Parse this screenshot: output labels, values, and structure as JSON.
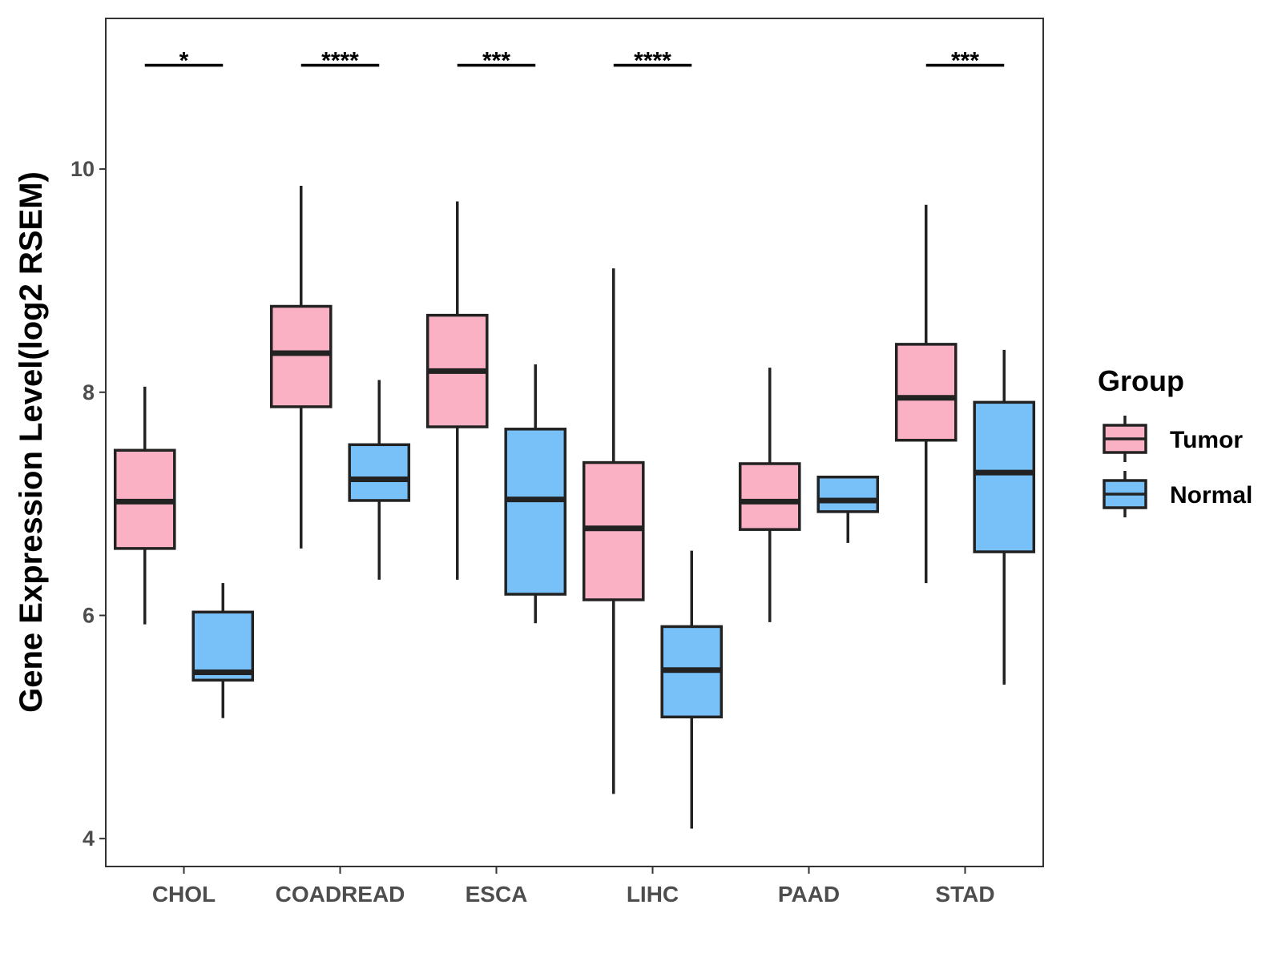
{
  "chart_data": {
    "type": "boxplot",
    "ylabel": "Gene Expression Level(log2 RSEM)",
    "xlabel": "",
    "ylim": [
      3.75,
      11.35
    ],
    "yticks": [
      4,
      6,
      8,
      10
    ],
    "grid": false,
    "categories": [
      "CHOL",
      "COADREAD",
      "ESCA",
      "LIHC",
      "PAAD",
      "STAD"
    ],
    "legend": {
      "title": "Group",
      "position": "right",
      "entries": [
        {
          "name": "Tumor",
          "color": "#FBB1C4"
        },
        {
          "name": "Normal",
          "color": "#78C1F8"
        }
      ]
    },
    "series": [
      {
        "name": "Tumor",
        "color": "#FBB1C4",
        "boxes": [
          {
            "category": "CHOL",
            "min": 5.92,
            "q1": 6.6,
            "median": 7.02,
            "q3": 7.48,
            "max": 8.05
          },
          {
            "category": "COADREAD",
            "min": 6.6,
            "q1": 7.87,
            "median": 8.35,
            "q3": 8.77,
            "max": 9.85
          },
          {
            "category": "ESCA",
            "min": 6.32,
            "q1": 7.69,
            "median": 8.19,
            "q3": 8.69,
            "max": 9.71
          },
          {
            "category": "LIHC",
            "min": 4.4,
            "q1": 6.14,
            "median": 6.78,
            "q3": 7.37,
            "max": 9.11
          },
          {
            "category": "PAAD",
            "min": 5.94,
            "q1": 6.77,
            "median": 7.02,
            "q3": 7.36,
            "max": 8.22
          },
          {
            "category": "STAD",
            "min": 6.29,
            "q1": 7.57,
            "median": 7.95,
            "q3": 8.43,
            "max": 9.68
          }
        ]
      },
      {
        "name": "Normal",
        "color": "#78C1F8",
        "boxes": [
          {
            "category": "CHOL",
            "min": 5.08,
            "q1": 5.42,
            "median": 5.49,
            "q3": 6.03,
            "max": 6.29
          },
          {
            "category": "COADREAD",
            "min": 6.32,
            "q1": 7.03,
            "median": 7.22,
            "q3": 7.53,
            "max": 8.11
          },
          {
            "category": "ESCA",
            "min": 5.93,
            "q1": 6.19,
            "median": 7.04,
            "q3": 7.67,
            "max": 8.25
          },
          {
            "category": "LIHC",
            "min": 4.09,
            "q1": 5.09,
            "median": 5.51,
            "q3": 5.9,
            "max": 6.58
          },
          {
            "category": "PAAD",
            "min": 6.65,
            "q1": 6.93,
            "median": 7.03,
            "q3": 7.24,
            "max": 7.24
          },
          {
            "category": "STAD",
            "min": 5.38,
            "q1": 6.57,
            "median": 7.28,
            "q3": 7.91,
            "max": 8.38
          }
        ]
      }
    ],
    "significance": [
      {
        "category": "CHOL",
        "label": "*",
        "y": 10.93
      },
      {
        "category": "COADREAD",
        "label": "****",
        "y": 10.93
      },
      {
        "category": "ESCA",
        "label": "***",
        "y": 10.93
      },
      {
        "category": "LIHC",
        "label": "****",
        "y": 10.93
      },
      {
        "category": "STAD",
        "label": "***",
        "y": 10.93
      }
    ]
  }
}
